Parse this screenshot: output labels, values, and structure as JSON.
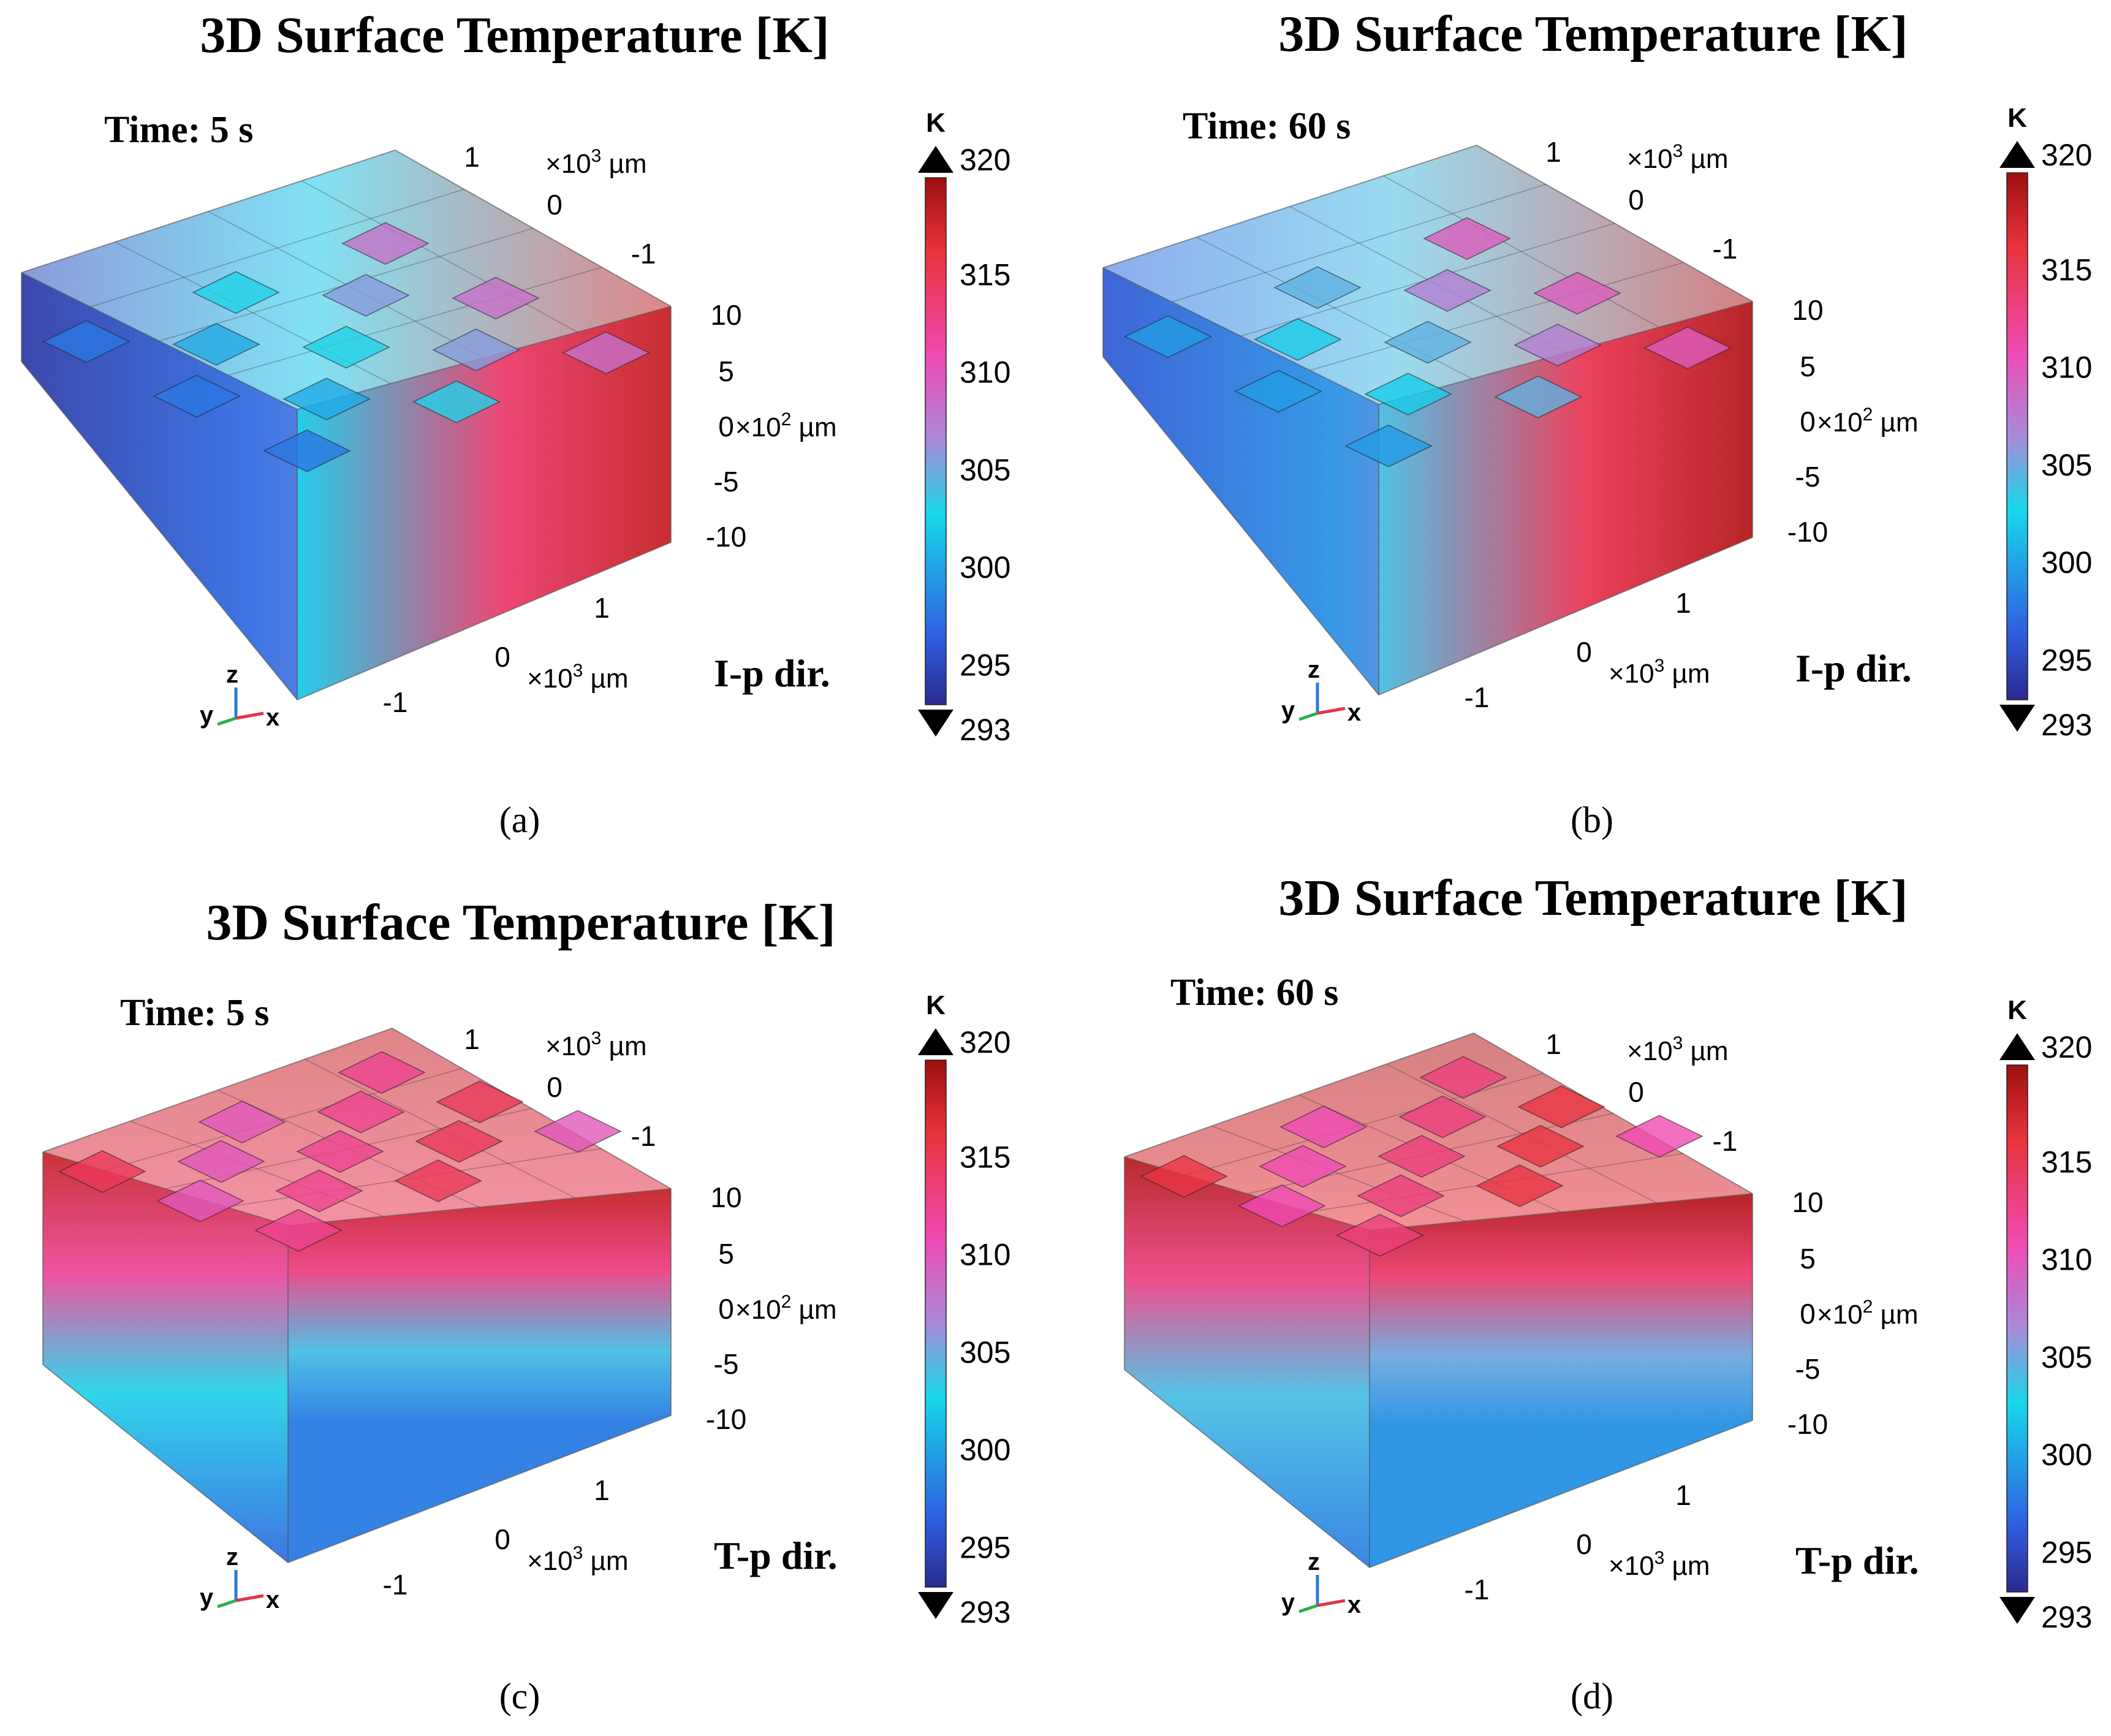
{
  "figure": {
    "colors": {
      "cold": "#2a2a8f",
      "blue": "#2f5fe0",
      "cyan": "#16d8ea",
      "lavender": "#a88ad8",
      "magenta": "#ef4bb4",
      "red": "#e8333a",
      "dark_red": "#9e0f10"
    }
  },
  "chart_data": [
    {
      "panel": "a",
      "type": "heatmap",
      "title": "3D Surface Temperature [K]",
      "time_label": "Time: 5 s",
      "direction_label": "I-p dir.",
      "caption": "(a)",
      "x_axis": {
        "ticks": [
          "-1",
          "0",
          "1"
        ],
        "unit_prefix": "×10",
        "unit_exp": "3",
        "unit": "µm"
      },
      "y_axis": {
        "ticks": [
          "1",
          "0",
          "-1"
        ],
        "unit_prefix": "×10",
        "unit_exp": "3",
        "unit": "µm"
      },
      "z_axis": {
        "ticks": [
          "10",
          "5",
          "0",
          "-5",
          "-10"
        ],
        "unit_prefix": "×10",
        "unit_exp": "2",
        "unit": "µm"
      },
      "colorbar": {
        "unit": "K",
        "min": 293,
        "max": 320,
        "ticks": [
          "320",
          "315",
          "310",
          "305",
          "300",
          "295",
          "293"
        ]
      },
      "gradient": "along x, cold at left side and hot at right face",
      "temperature_range_shown": [
        294,
        318
      ]
    },
    {
      "panel": "b",
      "type": "heatmap",
      "title": "3D Surface Temperature [K]",
      "time_label": "Time: 60 s",
      "direction_label": "I-p dir.",
      "caption": "(b)",
      "x_axis": {
        "ticks": [
          "-1",
          "0",
          "1"
        ],
        "unit_prefix": "×10",
        "unit_exp": "3",
        "unit": "µm"
      },
      "y_axis": {
        "ticks": [
          "1",
          "0",
          "-1"
        ],
        "unit_prefix": "×10",
        "unit_exp": "3",
        "unit": "µm"
      },
      "z_axis": {
        "ticks": [
          "10",
          "5",
          "0",
          "-5",
          "-10"
        ],
        "unit_prefix": "×10",
        "unit_exp": "2",
        "unit": "µm"
      },
      "colorbar": {
        "unit": "K",
        "min": 293,
        "max": 320,
        "ticks": [
          "320",
          "315",
          "310",
          "305",
          "300",
          "295",
          "293"
        ]
      },
      "gradient": "along x, cold at left side and hot at right face",
      "temperature_range_shown": [
        296,
        319
      ]
    },
    {
      "panel": "c",
      "type": "heatmap",
      "title": "3D Surface Temperature [K]",
      "time_label": "Time: 5 s",
      "direction_label": "T-p dir.",
      "caption": "(c)",
      "x_axis": {
        "ticks": [
          "-1",
          "0",
          "1"
        ],
        "unit_prefix": "×10",
        "unit_exp": "3",
        "unit": "µm"
      },
      "y_axis": {
        "ticks": [
          "1",
          "0",
          "-1"
        ],
        "unit_prefix": "×10",
        "unit_exp": "3",
        "unit": "µm"
      },
      "z_axis": {
        "ticks": [
          "10",
          "5",
          "0",
          "-5",
          "-10"
        ],
        "unit_prefix": "×10",
        "unit_exp": "2",
        "unit": "µm"
      },
      "colorbar": {
        "unit": "K",
        "min": 293,
        "max": 320,
        "ticks": [
          "320",
          "315",
          "310",
          "305",
          "300",
          "295",
          "293"
        ]
      },
      "gradient": "along z, hot at top face and cold at bottom",
      "temperature_range_shown": [
        297,
        318
      ]
    },
    {
      "panel": "d",
      "type": "heatmap",
      "title": "3D Surface Temperature [K]",
      "time_label": "Time: 60 s",
      "direction_label": "T-p dir.",
      "caption": "(d)",
      "x_axis": {
        "ticks": [
          "-1",
          "0",
          "1"
        ],
        "unit_prefix": "×10",
        "unit_exp": "3",
        "unit": "µm"
      },
      "y_axis": {
        "ticks": [
          "1",
          "0",
          "-1"
        ],
        "unit_prefix": "×10",
        "unit_exp": "3",
        "unit": "µm"
      },
      "z_axis": {
        "ticks": [
          "10",
          "5",
          "0",
          "-5",
          "-10"
        ],
        "unit_prefix": "×10",
        "unit_exp": "2",
        "unit": "µm"
      },
      "colorbar": {
        "unit": "K",
        "min": 293,
        "max": 320,
        "ticks": [
          "320",
          "315",
          "310",
          "305",
          "300",
          "295",
          "293"
        ]
      },
      "gradient": "along z, hot at top face and cold at bottom",
      "temperature_range_shown": [
        298,
        319
      ]
    }
  ]
}
